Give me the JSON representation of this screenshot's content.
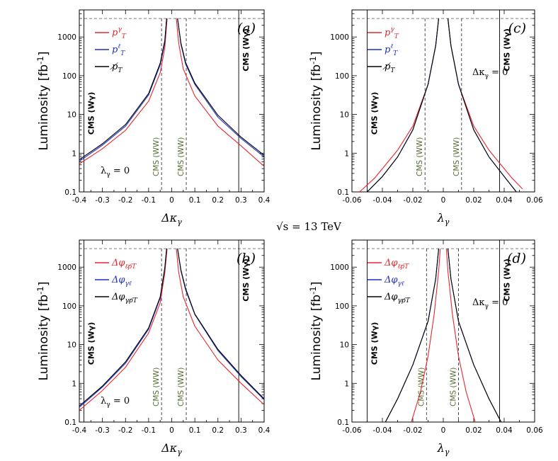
{
  "center_label": "√s = 13 TeV",
  "colors": {
    "red": "#e8262d",
    "blue": "#1f2fbf",
    "black": "#000000",
    "olive": "#556b2f"
  },
  "chart_data": [
    {
      "type": "line",
      "panel_label": "(a)",
      "xlabel": "Δκγ",
      "ylabel": "Luminosity [fb-1]",
      "xlim": [
        -0.4,
        0.4
      ],
      "ylim": [
        0.1,
        5000
      ],
      "yscale": "log",
      "xticks": [
        -0.4,
        -0.3,
        -0.2,
        -0.1,
        0,
        0.1,
        0.2,
        0.3,
        0.4
      ],
      "xticklabels": [
        "-0.4",
        "-0.3",
        "-0.2",
        "-0.1",
        "0",
        "0.1",
        "0.2",
        "0.3",
        "0.4"
      ],
      "yticks": [
        0.1,
        1,
        10,
        100,
        1000
      ],
      "yticklabels": [
        "0.1",
        "1",
        "10",
        "100",
        "1000"
      ],
      "hline": 3000,
      "legend": {
        "position": "top-left",
        "entries": [
          "pTγ",
          "pTℓ",
          "p̸T"
        ]
      },
      "annotation": "λγ = 0",
      "cms_wgamma": {
        "label": "CMS (Wγ)",
        "lines": [
          -0.38,
          0.29
        ]
      },
      "cms_ww": {
        "label": "CMS (WW)",
        "lines": [
          -0.044,
          0.063
        ]
      },
      "series": [
        {
          "color": "red",
          "left": [
            [
              -0.4,
              0.53
            ],
            [
              -0.3,
              1.3
            ],
            [
              -0.2,
              3.9
            ],
            [
              -0.1,
              22
            ],
            [
              -0.05,
              120
            ],
            [
              -0.03,
              520
            ],
            [
              -0.02,
              3000
            ]
          ],
          "right": [
            [
              0.02,
              3000
            ],
            [
              0.03,
              700
            ],
            [
              0.05,
              150
            ],
            [
              0.1,
              30
            ],
            [
              0.2,
              5
            ],
            [
              0.3,
              1.55
            ],
            [
              0.4,
              0.46
            ]
          ]
        },
        {
          "color": "blue",
          "left": [
            [
              -0.4,
              0.62
            ],
            [
              -0.3,
              1.6
            ],
            [
              -0.2,
              5
            ],
            [
              -0.1,
              32
            ],
            [
              -0.05,
              190
            ],
            [
              -0.03,
              700
            ],
            [
              -0.022,
              3000
            ]
          ],
          "right": [
            [
              0.025,
              3000
            ],
            [
              0.04,
              650
            ],
            [
              0.06,
              200
            ],
            [
              0.1,
              60
            ],
            [
              0.2,
              8.5
            ],
            [
              0.3,
              2.4
            ],
            [
              0.4,
              0.8
            ]
          ]
        },
        {
          "color": "black",
          "left": [
            [
              -0.4,
              0.68
            ],
            [
              -0.3,
              1.75
            ],
            [
              -0.2,
              5.5
            ],
            [
              -0.1,
              35
            ],
            [
              -0.05,
              210
            ],
            [
              -0.03,
              800
            ],
            [
              -0.022,
              3000
            ]
          ],
          "right": [
            [
              0.025,
              3000
            ],
            [
              0.04,
              700
            ],
            [
              0.06,
              220
            ],
            [
              0.1,
              65
            ],
            [
              0.2,
              9.5
            ],
            [
              0.3,
              2.6
            ],
            [
              0.4,
              0.88
            ]
          ]
        }
      ]
    },
    {
      "type": "line",
      "panel_label": "(c)",
      "xlabel": "λγ",
      "ylabel": "Luminosity [fb-1]",
      "xlim": [
        -0.06,
        0.06
      ],
      "ylim": [
        0.1,
        5000
      ],
      "yscale": "log",
      "xticks": [
        -0.06,
        -0.04,
        -0.02,
        0,
        0.02,
        0.04,
        0.06
      ],
      "xticklabels": [
        "-0.06",
        "-0.04",
        "-0.02",
        "0",
        "0.02",
        "0.04",
        "0.06"
      ],
      "yticks": [
        0.1,
        1,
        10,
        100,
        1000
      ],
      "yticklabels": [
        "0.1",
        "1",
        "10",
        "100",
        "1000"
      ],
      "hline": 3000,
      "legend": {
        "position": "top-left",
        "entries": [
          "pTγ",
          "pTℓ",
          "p̸T"
        ]
      },
      "annotation": "Δκγ = 0",
      "cms_wgamma": {
        "label": "CMS (Wγ)",
        "lines": [
          -0.05,
          0.037
        ]
      },
      "cms_ww": {
        "label": "CMS (WW)",
        "lines": [
          -0.012,
          0.012
        ]
      },
      "series": [
        {
          "color": "red",
          "left": [
            [
              -0.055,
              0.1
            ],
            [
              -0.045,
              0.23
            ],
            [
              -0.03,
              1.2
            ],
            [
              -0.02,
              5
            ],
            [
              -0.01,
              60
            ],
            [
              -0.005,
              600
            ],
            [
              -0.003,
              3000
            ]
          ],
          "right": [
            [
              0.003,
              3000
            ],
            [
              0.005,
              600
            ],
            [
              0.01,
              60
            ],
            [
              0.02,
              5
            ],
            [
              0.03,
              1.2
            ],
            [
              0.045,
              0.23
            ],
            [
              0.052,
              0.12
            ]
          ]
        },
        {
          "color": "blue",
          "left": [
            [
              -0.05,
              0.1
            ],
            [
              -0.04,
              0.25
            ],
            [
              -0.03,
              0.8
            ],
            [
              -0.02,
              4
            ],
            [
              -0.01,
              60
            ],
            [
              -0.005,
              600
            ],
            [
              -0.003,
              3000
            ]
          ],
          "right": [
            [
              0.003,
              3000
            ],
            [
              0.005,
              600
            ],
            [
              0.01,
              60
            ],
            [
              0.02,
              4
            ],
            [
              0.03,
              0.8
            ],
            [
              0.04,
              0.25
            ],
            [
              0.048,
              0.1
            ]
          ]
        },
        {
          "color": "black",
          "left": [
            [
              -0.05,
              0.1
            ],
            [
              -0.04,
              0.25
            ],
            [
              -0.03,
              0.8
            ],
            [
              -0.02,
              4
            ],
            [
              -0.01,
              60
            ],
            [
              -0.005,
              600
            ],
            [
              -0.003,
              3000
            ]
          ],
          "right": [
            [
              0.003,
              3000
            ],
            [
              0.005,
              600
            ],
            [
              0.01,
              60
            ],
            [
              0.02,
              4
            ],
            [
              0.03,
              0.8
            ],
            [
              0.04,
              0.25
            ],
            [
              0.048,
              0.1
            ]
          ]
        }
      ]
    },
    {
      "type": "line",
      "panel_label": "(b)",
      "xlabel": "Δκγ",
      "ylabel": "Luminosity [fb-1]",
      "xlim": [
        -0.4,
        0.4
      ],
      "ylim": [
        0.1,
        5000
      ],
      "yscale": "log",
      "xticks": [
        -0.4,
        -0.3,
        -0.2,
        -0.1,
        0,
        0.1,
        0.2,
        0.3,
        0.4
      ],
      "xticklabels": [
        "-0.4",
        "-0.3",
        "-0.2",
        "-0.1",
        "0",
        "0.1",
        "0.2",
        "0.3",
        "0.4"
      ],
      "yticks": [
        0.1,
        1,
        10,
        100,
        1000
      ],
      "yticklabels": [
        "0.1",
        "1",
        "10",
        "100",
        "1000"
      ],
      "hline": 3000,
      "legend": {
        "position": "top-left",
        "entries": [
          "Δφℓp̸T",
          "Δφγℓ",
          "Δφγp̸T"
        ]
      },
      "annotation": "λγ = 0",
      "cms_wgamma": {
        "label": "CMS (Wγ)",
        "lines": [
          -0.38,
          0.29
        ]
      },
      "cms_ww": {
        "label": "CMS (WW)",
        "lines": [
          -0.044,
          0.063
        ]
      },
      "series": [
        {
          "color": "red",
          "left": [
            [
              -0.4,
              0.2
            ],
            [
              -0.3,
              0.65
            ],
            [
              -0.2,
              2.6
            ],
            [
              -0.1,
              20
            ],
            [
              -0.05,
              120
            ],
            [
              -0.03,
              700
            ],
            [
              -0.02,
              3000
            ]
          ],
          "right": [
            [
              0.02,
              3000
            ],
            [
              0.03,
              750
            ],
            [
              0.05,
              170
            ],
            [
              0.1,
              30
            ],
            [
              0.2,
              4
            ],
            [
              0.3,
              1
            ],
            [
              0.4,
              0.28
            ]
          ]
        },
        {
          "color": "blue",
          "left": [
            [
              -0.4,
              0.24
            ],
            [
              -0.3,
              0.8
            ],
            [
              -0.2,
              3.3
            ],
            [
              -0.1,
              25
            ],
            [
              -0.05,
              160
            ],
            [
              -0.03,
              900
            ],
            [
              -0.022,
              3000
            ]
          ],
          "right": [
            [
              0.025,
              3000
            ],
            [
              0.04,
              800
            ],
            [
              0.06,
              260
            ],
            [
              0.1,
              60
            ],
            [
              0.2,
              7
            ],
            [
              0.3,
              1.5
            ],
            [
              0.4,
              0.38
            ]
          ]
        },
        {
          "color": "black",
          "left": [
            [
              -0.4,
              0.26
            ],
            [
              -0.3,
              0.85
            ],
            [
              -0.2,
              3.6
            ],
            [
              -0.1,
              27
            ],
            [
              -0.05,
              170
            ],
            [
              -0.03,
              950
            ],
            [
              -0.022,
              3000
            ]
          ],
          "right": [
            [
              0.025,
              3000
            ],
            [
              0.04,
              850
            ],
            [
              0.06,
              280
            ],
            [
              0.1,
              62
            ],
            [
              0.2,
              7.5
            ],
            [
              0.3,
              1.6
            ],
            [
              0.4,
              0.4
            ]
          ]
        }
      ]
    },
    {
      "type": "line",
      "panel_label": "(d)",
      "xlabel": "λγ",
      "ylabel": "Luminosity [fb-1]",
      "xlim": [
        -0.06,
        0.06
      ],
      "ylim": [
        0.1,
        5000
      ],
      "yscale": "log",
      "xticks": [
        -0.06,
        -0.04,
        -0.02,
        0,
        0.02,
        0.04,
        0.06
      ],
      "xticklabels": [
        "-0.06",
        "-0.04",
        "-0.02",
        "0",
        "0.02",
        "0.04",
        "0.06"
      ],
      "yticks": [
        0.1,
        1,
        10,
        100,
        1000
      ],
      "yticklabels": [
        "0.1",
        "1",
        "10",
        "100",
        "1000"
      ],
      "hline": 3000,
      "legend": {
        "position": "top-left",
        "entries": [
          "Δφℓp̸T",
          "Δφγℓ",
          "Δφγp̸T"
        ]
      },
      "annotation": "Δκγ = 0",
      "cms_wgamma": {
        "label": "CMS (Wγ)",
        "lines": [
          -0.05,
          0.037
        ]
      },
      "cms_ww": {
        "label": "CMS (WW)",
        "lines": [
          -0.011,
          0.01
        ]
      },
      "series": [
        {
          "color": "red",
          "left": [
            [
              -0.021,
              0.1
            ],
            [
              -0.015,
              0.6
            ],
            [
              -0.01,
              5
            ],
            [
              -0.006,
              60
            ],
            [
              -0.003,
              800
            ],
            [
              -0.002,
              3000
            ]
          ],
          "right": [
            [
              0.002,
              3000
            ],
            [
              0.003,
              800
            ],
            [
              0.006,
              60
            ],
            [
              0.01,
              5
            ],
            [
              0.015,
              0.6
            ],
            [
              0.021,
              0.1
            ]
          ]
        },
        {
          "color": "blue",
          "left": [
            [
              -0.038,
              0.1
            ],
            [
              -0.03,
              0.4
            ],
            [
              -0.02,
              3
            ],
            [
              -0.01,
              40
            ],
            [
              -0.005,
              500
            ],
            [
              -0.003,
              3000
            ]
          ],
          "right": [
            [
              0.003,
              3000
            ],
            [
              0.005,
              500
            ],
            [
              0.01,
              40
            ],
            [
              0.02,
              3
            ],
            [
              0.03,
              0.4
            ],
            [
              0.038,
              0.1
            ]
          ]
        },
        {
          "color": "black",
          "left": [
            [
              -0.038,
              0.1
            ],
            [
              -0.03,
              0.4
            ],
            [
              -0.02,
              3
            ],
            [
              -0.01,
              40
            ],
            [
              -0.005,
              500
            ],
            [
              -0.003,
              3000
            ]
          ],
          "right": [
            [
              0.003,
              3000
            ],
            [
              0.005,
              500
            ],
            [
              0.01,
              40
            ],
            [
              0.02,
              3
            ],
            [
              0.03,
              0.4
            ],
            [
              0.038,
              0.1
            ]
          ]
        }
      ]
    }
  ]
}
